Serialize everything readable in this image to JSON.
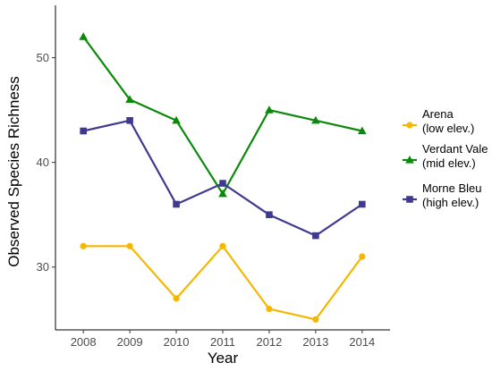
{
  "chart_data": {
    "type": "line",
    "title": "",
    "xlabel": "Year",
    "ylabel": "Observed Species Richness",
    "x": [
      2008,
      2009,
      2010,
      2011,
      2012,
      2013,
      2014
    ],
    "x_ticks": [
      "2008",
      "2009",
      "2010",
      "2011",
      "2012",
      "2013",
      "2014"
    ],
    "y_ticks": [
      "30",
      "40",
      "50"
    ],
    "xlim": [
      2007.4,
      2014.6
    ],
    "ylim": [
      24,
      55
    ],
    "grid": false,
    "legend_position": "right",
    "series": [
      {
        "name": "Arena",
        "sublabel": "(low elev.)",
        "color": "#F5B700",
        "marker": "circle",
        "values": [
          32,
          32,
          27,
          32,
          26,
          25,
          31
        ]
      },
      {
        "name": "Verdant Vale",
        "sublabel": "(mid elev.)",
        "color": "#0A8A0A",
        "marker": "triangle",
        "values": [
          52,
          46,
          44,
          37,
          45,
          44,
          43
        ]
      },
      {
        "name": "Morne Bleu",
        "sublabel": "(high elev.)",
        "color": "#3F3A8F",
        "marker": "square",
        "values": [
          43,
          44,
          36,
          38,
          35,
          33,
          36
        ]
      }
    ]
  }
}
